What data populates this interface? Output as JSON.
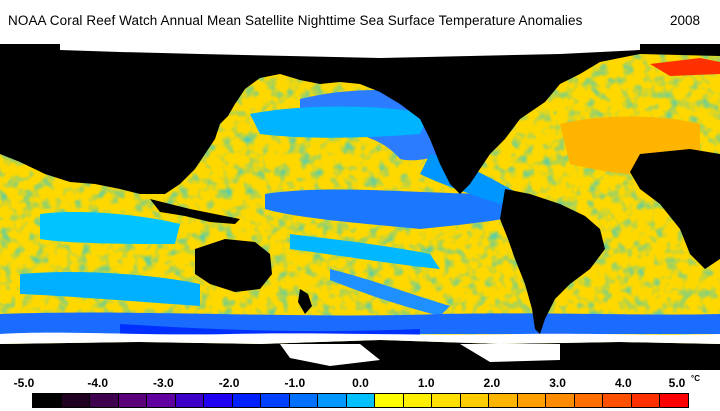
{
  "header": {
    "title": "NOAA Coral Reef Watch Annual Mean Satellite Nighttime Sea Surface Temperature Anomalies",
    "year": "2008"
  },
  "map": {
    "icon": "global-sst-anomaly-map",
    "land_color": "#000000",
    "ice_color": "#ffffff",
    "dominant_anomaly_colors": [
      "#ffff00",
      "#ffd400",
      "#00c8ff",
      "#0080ff",
      "#0040ff",
      "#ff8000",
      "#ff0000"
    ]
  },
  "colorbar": {
    "labels": [
      "-5.0",
      "-4.0",
      "-3.0",
      "-2.0",
      "-1.0",
      "0.0",
      "1.0",
      "2.0",
      "3.0",
      "4.0",
      "5.0"
    ],
    "unit": "°C",
    "colors": [
      "#000000",
      "#200020",
      "#400050",
      "#5a007a",
      "#6000a0",
      "#3c00c8",
      "#2000f0",
      "#0020ff",
      "#0040ff",
      "#0070ff",
      "#0098ff",
      "#00c0ff",
      "#ffff00",
      "#fff000",
      "#ffe000",
      "#ffcc00",
      "#ffb400",
      "#ffa000",
      "#ff8c00",
      "#ff7000",
      "#ff5000",
      "#ff3000",
      "#ff0000"
    ]
  }
}
